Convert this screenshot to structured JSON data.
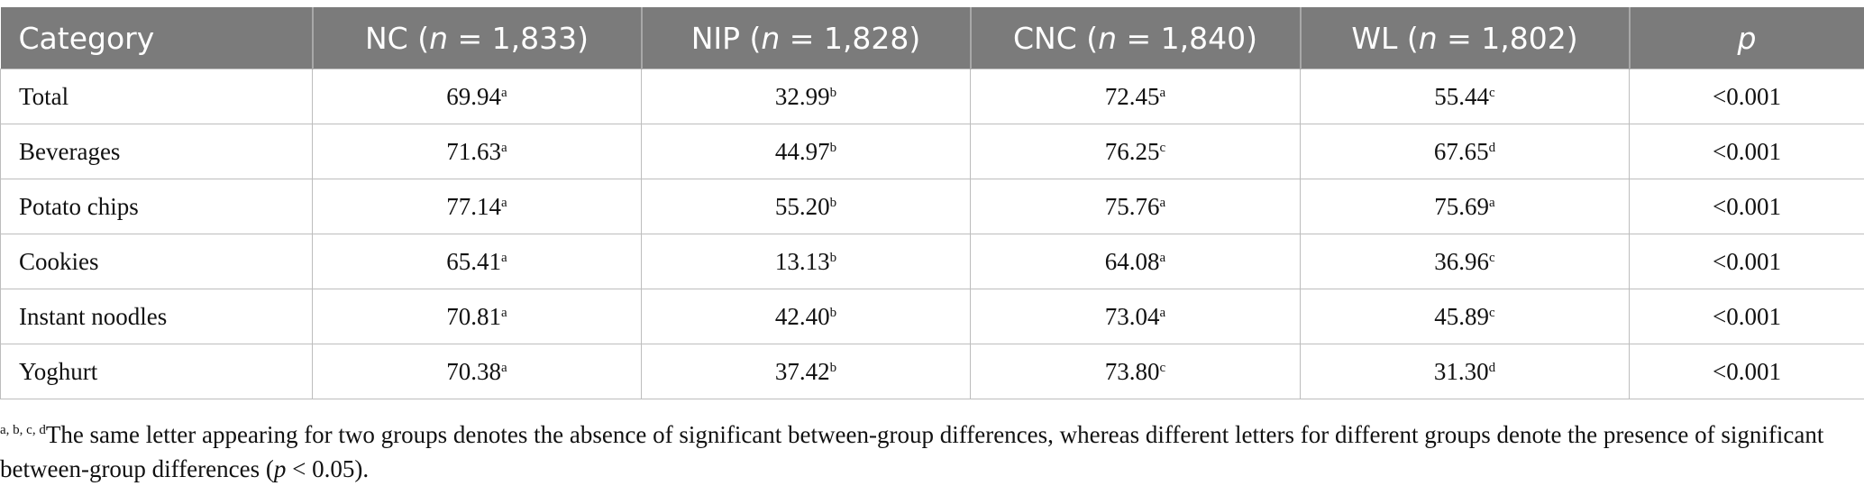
{
  "table": {
    "headers": [
      [
        "Category"
      ],
      [
        "NC (",
        "n",
        " = 1,833)"
      ],
      [
        "NIP (",
        "n",
        " = 1,828)"
      ],
      [
        "CNC (",
        "n",
        " = 1,840)"
      ],
      [
        "WL (",
        "n",
        " = 1,802)"
      ],
      [
        "",
        "p",
        ""
      ]
    ],
    "rows": [
      {
        "category": "Total",
        "cells": [
          {
            "value": "69.94",
            "sup": "a"
          },
          {
            "value": "32.99",
            "sup": "b"
          },
          {
            "value": "72.45",
            "sup": "a"
          },
          {
            "value": "55.44",
            "sup": "c"
          }
        ],
        "p": "<0.001"
      },
      {
        "category": "Beverages",
        "cells": [
          {
            "value": "71.63",
            "sup": "a"
          },
          {
            "value": "44.97",
            "sup": "b"
          },
          {
            "value": "76.25",
            "sup": "c"
          },
          {
            "value": "67.65",
            "sup": "d"
          }
        ],
        "p": "<0.001"
      },
      {
        "category": "Potato chips",
        "cells": [
          {
            "value": "77.14",
            "sup": "a"
          },
          {
            "value": "55.20",
            "sup": "b"
          },
          {
            "value": "75.76",
            "sup": "a"
          },
          {
            "value": "75.69",
            "sup": "a"
          }
        ],
        "p": "<0.001"
      },
      {
        "category": "Cookies",
        "cells": [
          {
            "value": "65.41",
            "sup": "a"
          },
          {
            "value": "13.13",
            "sup": "b"
          },
          {
            "value": "64.08",
            "sup": "a"
          },
          {
            "value": "36.96",
            "sup": "c"
          }
        ],
        "p": "<0.001"
      },
      {
        "category": "Instant noodles",
        "cells": [
          {
            "value": "70.81",
            "sup": "a"
          },
          {
            "value": "42.40",
            "sup": "b"
          },
          {
            "value": "73.04",
            "sup": "a"
          },
          {
            "value": "45.89",
            "sup": "c"
          }
        ],
        "p": "<0.001"
      },
      {
        "category": "Yoghurt",
        "cells": [
          {
            "value": "70.38",
            "sup": "a"
          },
          {
            "value": "37.42",
            "sup": "b"
          },
          {
            "value": "73.80",
            "sup": "c"
          },
          {
            "value": "31.30",
            "sup": "d"
          }
        ],
        "p": "<0.001"
      }
    ]
  },
  "footnote": {
    "sup": "a, b, c, d",
    "text": "The same letter appearing for two groups denotes the absence of significant between-group differences, whereas different letters for different groups denote the presence of significant between-group differences (",
    "italic": "p",
    "end": " < 0.05)."
  }
}
